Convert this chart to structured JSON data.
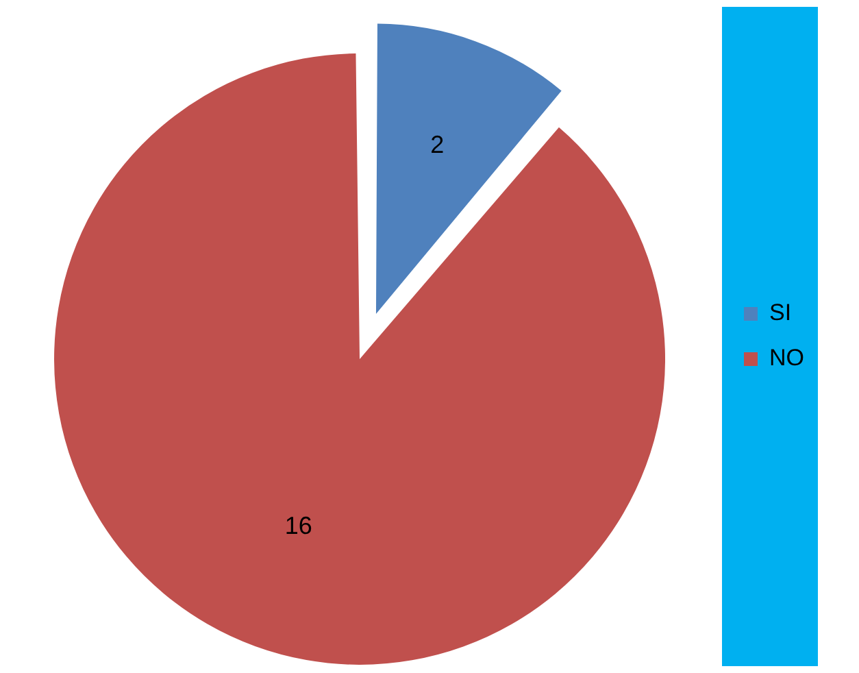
{
  "chart_data": {
    "type": "pie",
    "categories": [
      "SI",
      "NO"
    ],
    "values": [
      2,
      16
    ],
    "colors": [
      "#4f81bd",
      "#c0504d"
    ],
    "data_labels": true,
    "legend": "right"
  }
}
